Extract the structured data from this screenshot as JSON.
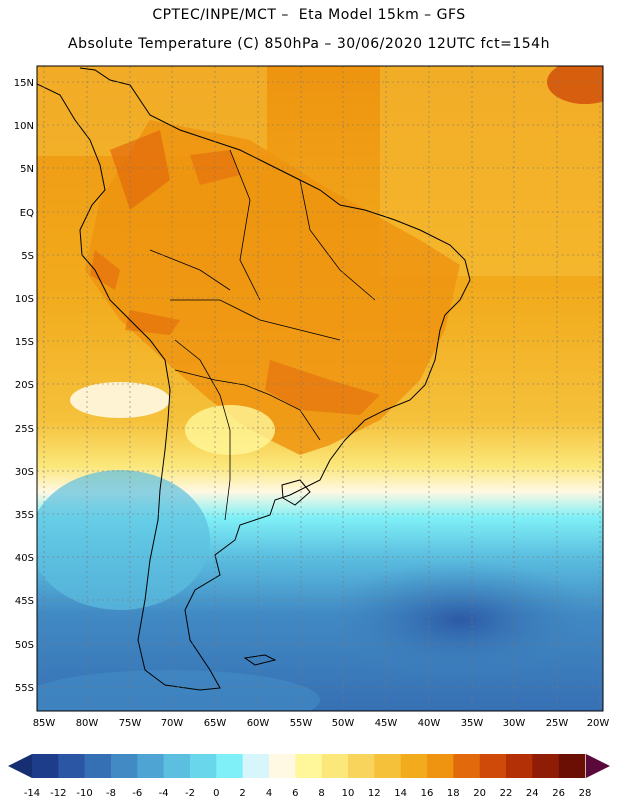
{
  "header": {
    "line1": "CPTEC/INPE/MCT –  Eta Model 15km – GFS",
    "line2": "Absolute Temperature (C) 850hPa – 30/06/2020 12UTC fct=154h"
  },
  "map": {
    "lat_labels": [
      "15N",
      "10N",
      "5N",
      "EQ",
      "5S",
      "10S",
      "15S",
      "20S",
      "25S",
      "30S",
      "35S",
      "40S",
      "45S",
      "50S",
      "55S"
    ],
    "lon_labels": [
      "85W",
      "80W",
      "75W",
      "70W",
      "65W",
      "60W",
      "55W",
      "50W",
      "45W",
      "40W",
      "35W",
      "30W",
      "25W",
      "20W"
    ],
    "lat_range": [
      15,
      -55
    ],
    "lon_range": [
      -85,
      -20
    ]
  },
  "colorbar": {
    "ticks": [
      "-14",
      "-12",
      "-10",
      "-8",
      "-6",
      "-4",
      "-2",
      "0",
      "2",
      "4",
      "6",
      "8",
      "10",
      "12",
      "14",
      "16",
      "18",
      "20",
      "22",
      "24",
      "26",
      "28"
    ],
    "colors": [
      "#1d3d8a",
      "#2b56a3",
      "#3670b4",
      "#418ac4",
      "#4ea5d3",
      "#5cbfe0",
      "#6ad6ec",
      "#7ff0f7",
      "#d6f6fb",
      "#fff8e3",
      "#fff79a",
      "#fbe77a",
      "#f8d45c",
      "#f5c13b",
      "#f2ab1c",
      "#ee9410",
      "#e26a0c",
      "#cf4a08",
      "#b33006",
      "#8f1c05",
      "#6b0f04"
    ],
    "under_color": "#152f72",
    "over_color": "#5a0a3a"
  }
}
